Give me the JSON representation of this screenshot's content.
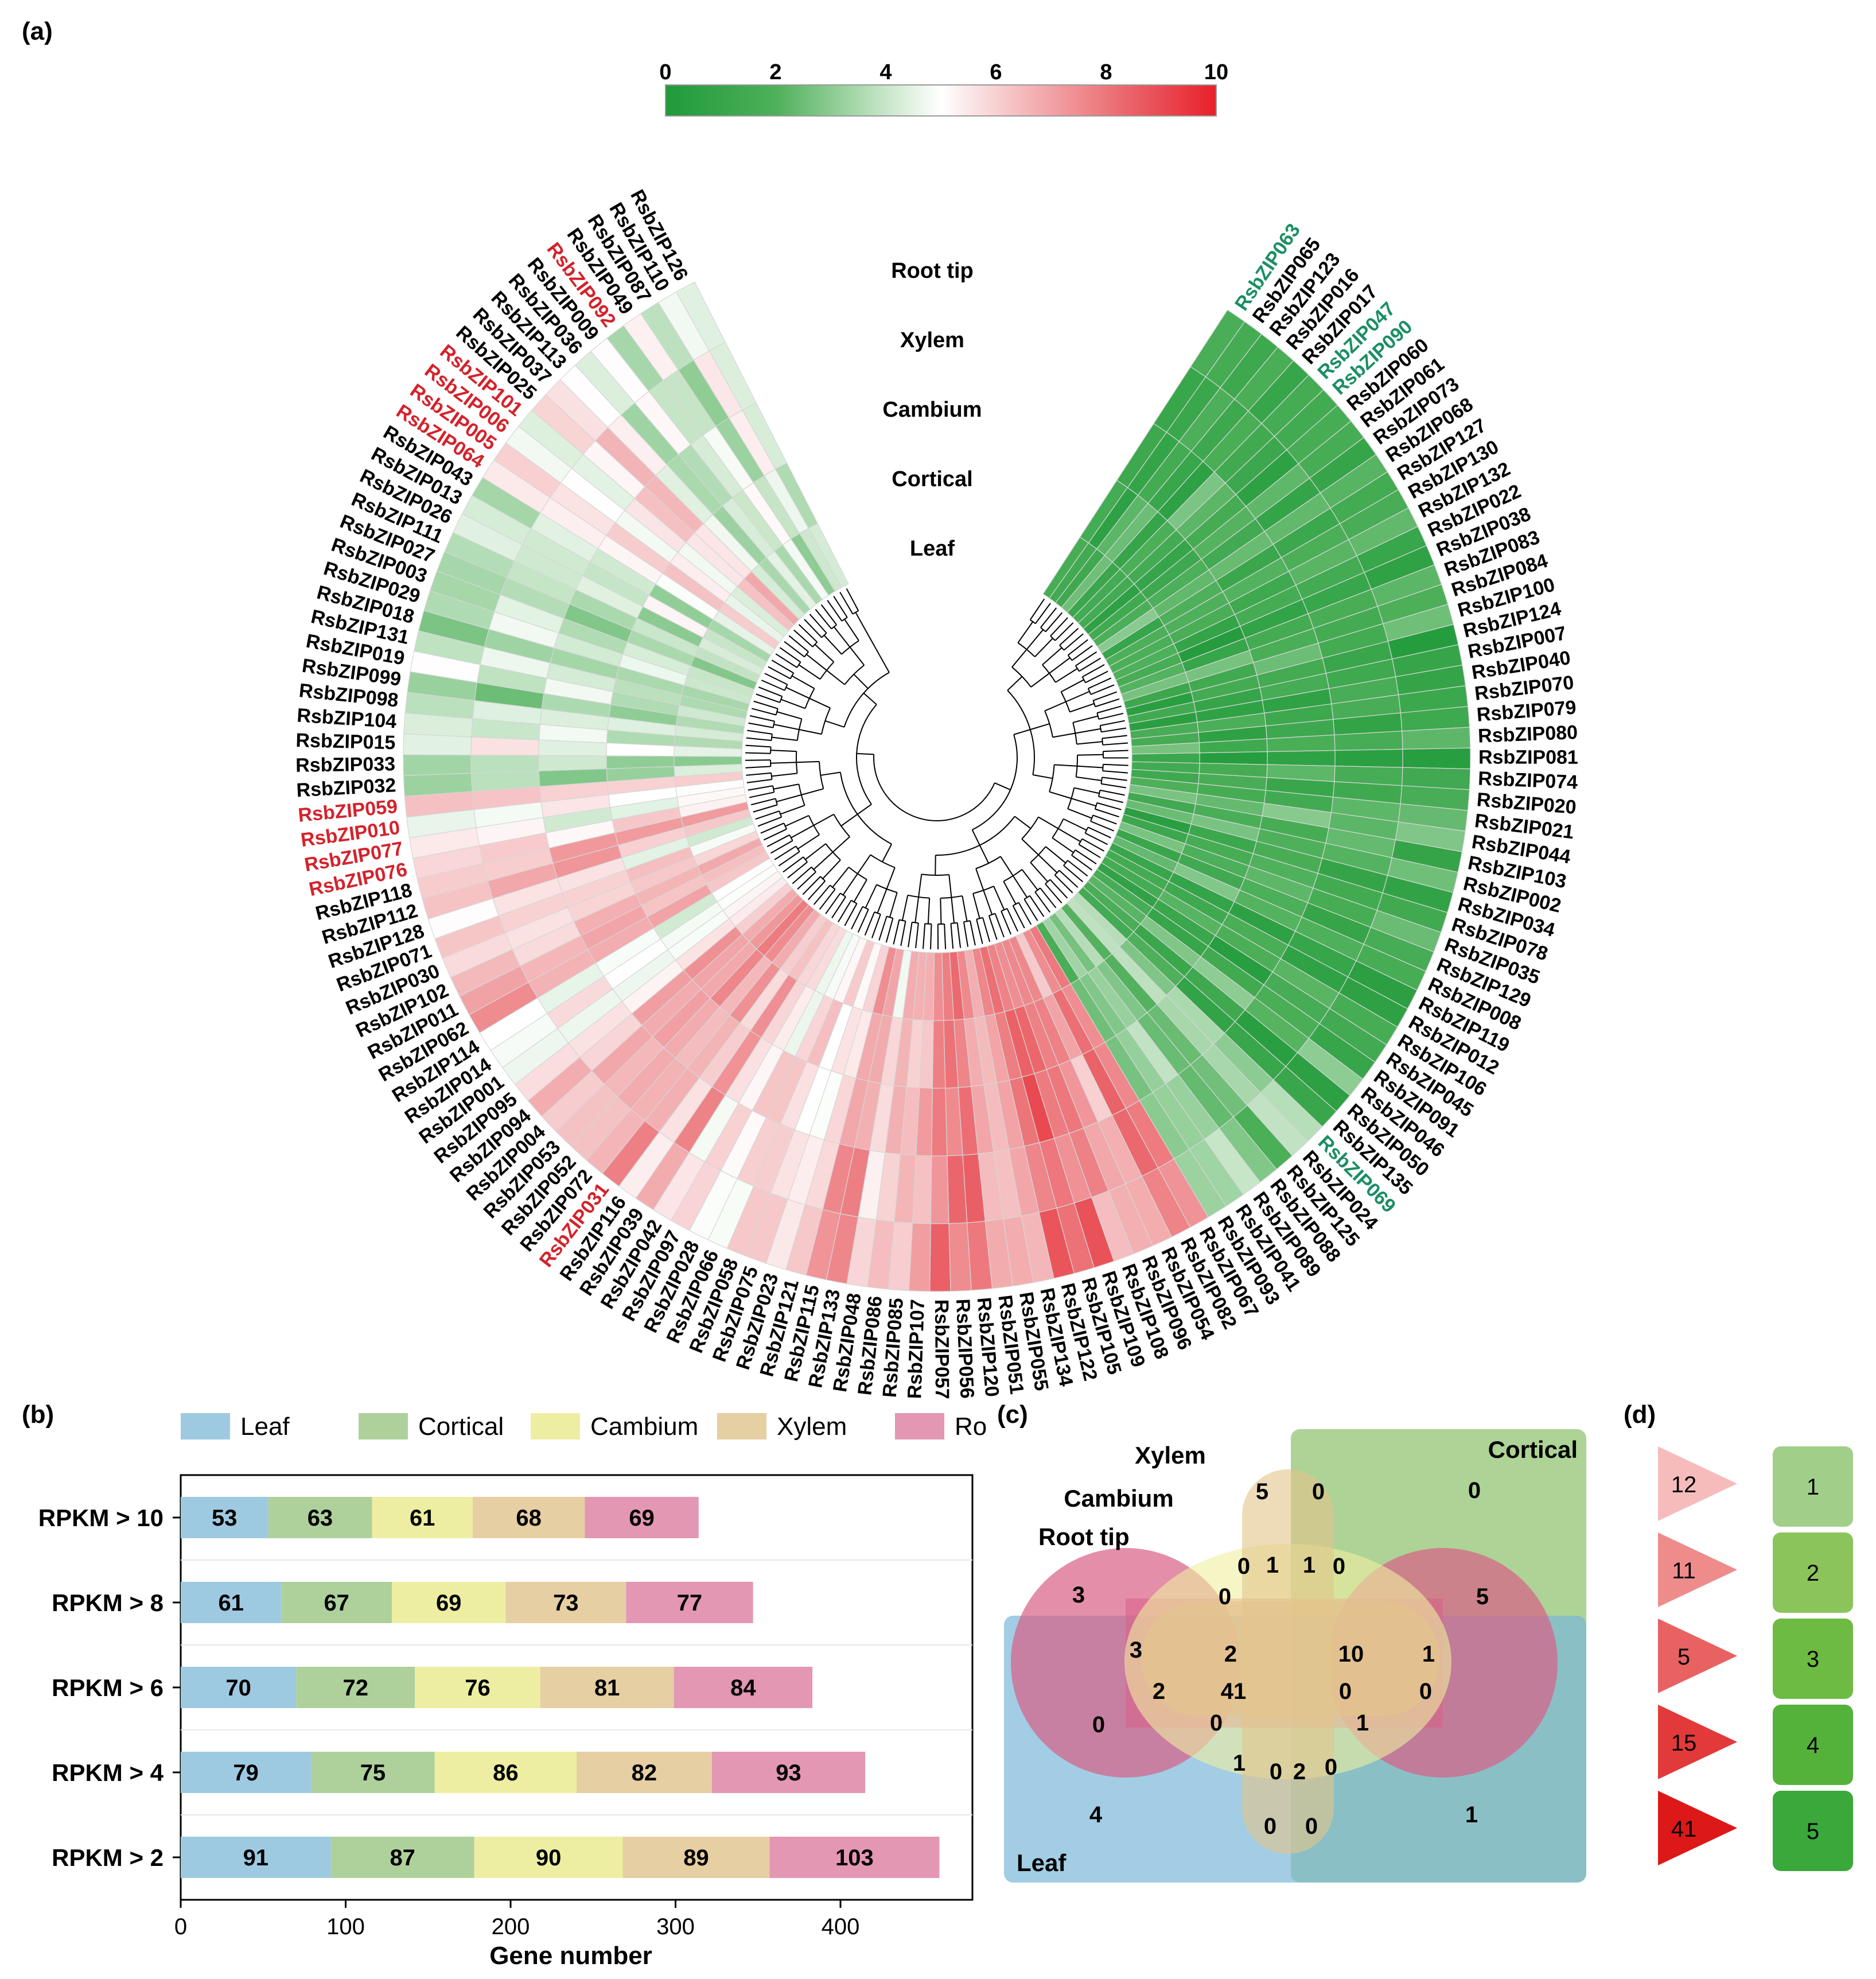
{
  "panel_labels": {
    "a": "(a)",
    "b": "(b)",
    "c": "(c)",
    "d": "(d)"
  },
  "colorscale": {
    "ticks": [
      "0",
      "2",
      "4",
      "6",
      "8",
      "10"
    ],
    "min": 0,
    "max": 10,
    "low_color": "#1f9a3a",
    "mid_color": "#ffffff",
    "high_color": "#e8202a"
  },
  "heatmap": {
    "tissue_labels": [
      "Root tip",
      "Xylem",
      "Cambium",
      "Cortical",
      "Leaf"
    ],
    "genes": [
      "RsbZIP063",
      "RsbZIP065",
      "RsbZIP123",
      "RsbZIP016",
      "RsbZIP017",
      "RsbZIP047",
      "RsbZIP090",
      "RsbZIP060",
      "RsbZIP061",
      "RsbZIP073",
      "RsbZIP068",
      "RsbZIP127",
      "RsbZIP130",
      "RsbZIP132",
      "RsbZIP022",
      "RsbZIP038",
      "RsbZIP083",
      "RsbZIP084",
      "RsbZIP100",
      "RsbZIP124",
      "RsbZIP007",
      "RsbZIP040",
      "RsbZIP070",
      "RsbZIP079",
      "RsbZIP080",
      "RsbZIP081",
      "RsbZIP074",
      "RsbZIP020",
      "RsbZIP021",
      "RsbZIP044",
      "RsbZIP103",
      "RsbZIP002",
      "RsbZIP034",
      "RsbZIP078",
      "RsbZIP035",
      "RsbZIP129",
      "RsbZIP008",
      "RsbZIP119",
      "RsbZIP012",
      "RsbZIP106",
      "RsbZIP045",
      "RsbZIP091",
      "RsbZIP046",
      "RsbZIP050",
      "RsbZIP135",
      "RsbZIP069",
      "RsbZIP024",
      "RsbZIP125",
      "RsbZIP088",
      "RsbZIP089",
      "RsbZIP041",
      "RsbZIP093",
      "RsbZIP067",
      "RsbZIP082",
      "RsbZIP054",
      "RsbZIP096",
      "RsbZIP108",
      "RsbZIP109",
      "RsbZIP105",
      "RsbZIP122",
      "RsbZIP134",
      "RsbZIP055",
      "RsbZIP051",
      "RsbZIP120",
      "RsbZIP056",
      "RsbZIP057",
      "RsbZIP107",
      "RsbZIP085",
      "RsbZIP086",
      "RsbZIP048",
      "RsbZIP133",
      "RsbZIP115",
      "RsbZIP121",
      "RsbZIP023",
      "RsbZIP075",
      "RsbZIP058",
      "RsbZIP066",
      "RsbZIP028",
      "RsbZIP097",
      "RsbZIP042",
      "RsbZIP039",
      "RsbZIP116",
      "RsbZIP031",
      "RsbZIP072",
      "RsbZIP052",
      "RsbZIP053",
      "RsbZIP004",
      "RsbZIP094",
      "RsbZIP095",
      "RsbZIP001",
      "RsbZIP014",
      "RsbZIP114",
      "RsbZIP062",
      "RsbZIP011",
      "RsbZIP102",
      "RsbZIP030",
      "RsbZIP071",
      "RsbZIP128",
      "RsbZIP112",
      "RsbZIP118",
      "RsbZIP076",
      "RsbZIP077",
      "RsbZIP010",
      "RsbZIP059",
      "RsbZIP032",
      "RsbZIP033",
      "RsbZIP015",
      "RsbZIP104",
      "RsbZIP098",
      "RsbZIP099",
      "RsbZIP019",
      "RsbZIP131",
      "RsbZIP018",
      "RsbZIP029",
      "RsbZIP003",
      "RsbZIP027",
      "RsbZIP111",
      "RsbZIP026",
      "RsbZIP013",
      "RsbZIP043",
      "RsbZIP064",
      "RsbZIP005",
      "RsbZIP006",
      "RsbZIP101",
      "RsbZIP025",
      "RsbZIP037",
      "RsbZIP113",
      "RsbZIP036",
      "RsbZIP009",
      "RsbZIP092",
      "RsbZIP049",
      "RsbZIP087",
      "RsbZIP110",
      "RsbZIP126"
    ],
    "highlight_red": [
      "RsbZIP092",
      "RsbZIP101",
      "RsbZIP006",
      "RsbZIP005",
      "RsbZIP064",
      "RsbZIP059",
      "RsbZIP010",
      "RsbZIP077",
      "RsbZIP076",
      "RsbZIP031"
    ],
    "highlight_green": [
      "RsbZIP063",
      "RsbZIP047",
      "RsbZIP090",
      "RsbZIP069"
    ]
  },
  "chart_data": [
    {
      "type": "bar",
      "orientation": "horizontal-stacked",
      "title": "",
      "categories": [
        "RPKM > 10",
        "RPKM > 8",
        "RPKM > 6",
        "RPKM > 4",
        "RPKM > 2"
      ],
      "series": [
        {
          "name": "Leaf",
          "color": "#9ecae1",
          "values": [
            53,
            61,
            70,
            79,
            91
          ]
        },
        {
          "name": "Cortical",
          "color": "#aed19c",
          "values": [
            63,
            67,
            72,
            75,
            87
          ]
        },
        {
          "name": "Cambium",
          "color": "#eeeea2",
          "values": [
            61,
            69,
            76,
            86,
            90
          ]
        },
        {
          "name": "Xylem",
          "color": "#e5cfa3",
          "values": [
            68,
            73,
            81,
            82,
            89
          ]
        },
        {
          "name": "Root tip",
          "color": "#e397b3",
          "values": [
            69,
            77,
            84,
            93,
            103
          ]
        }
      ],
      "xlabel": "Gene number",
      "ylabel": "",
      "xlim": [
        0,
        480
      ],
      "xticks": [
        "0",
        "100",
        "200",
        "300",
        "400"
      ]
    },
    {
      "type": "venn",
      "sets": [
        {
          "name": "Cortical",
          "color": "#8cc06a"
        },
        {
          "name": "Xylem",
          "color": "#e2c58a"
        },
        {
          "name": "Cambium",
          "color": "#eeeea0"
        },
        {
          "name": "Root tip",
          "color": "#d95f86"
        },
        {
          "name": "Leaf",
          "color": "#7ab8d8"
        }
      ],
      "region_values": [
        "0",
        "5",
        "0",
        "0",
        "1",
        "1",
        "0",
        "3",
        "0",
        "5",
        "3",
        "2",
        "10",
        "1",
        "0",
        "2",
        "41",
        "0",
        "0",
        "0",
        "1",
        "1",
        "0",
        "2",
        "0",
        "0",
        "0",
        "4",
        "1"
      ]
    },
    {
      "type": "legend-scale",
      "counts": [
        "12",
        "11",
        "5",
        "15",
        "41"
      ],
      "levels": [
        "1",
        "2",
        "3",
        "4",
        "5"
      ],
      "triangle_colors": [
        "#f6bcbc",
        "#ee8c8c",
        "#e86262",
        "#e23a3a",
        "#dd1818"
      ],
      "box_colors": [
        "#a1cf89",
        "#8cc45c",
        "#6ebb43",
        "#54b23b",
        "#3aa83a"
      ]
    }
  ]
}
